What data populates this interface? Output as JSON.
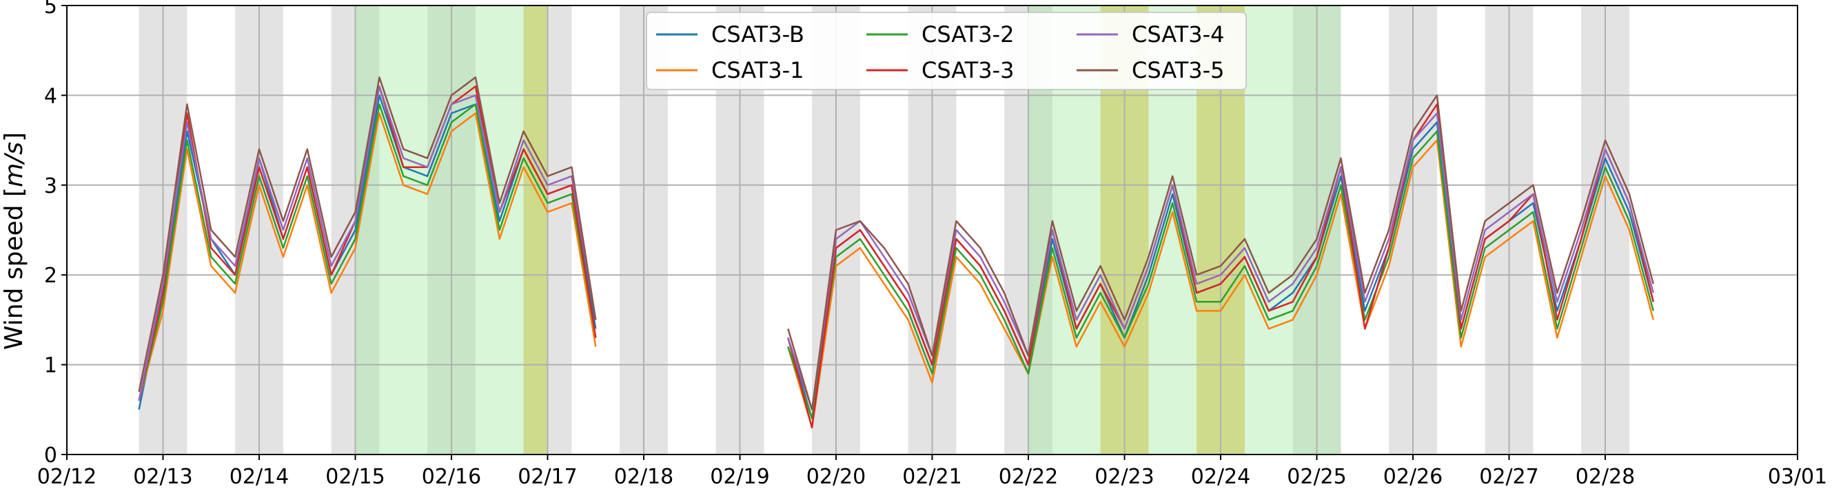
{
  "chart_data": {
    "type": "line",
    "title": "",
    "xlabel": "",
    "ylabel": "Wind speed [m/s]",
    "ylabel_parts": [
      "Wind speed [",
      "m/s",
      "]"
    ],
    "xlim": [
      "2024-02-12",
      "2024-03-01"
    ],
    "ylim": [
      0,
      5
    ],
    "yticks": [
      0,
      1,
      2,
      3,
      4,
      5
    ],
    "xticks": [
      {
        "date": "2024-02-12",
        "label": "02/12"
      },
      {
        "date": "2024-02-13",
        "label": "02/13"
      },
      {
        "date": "2024-02-14",
        "label": "02/14"
      },
      {
        "date": "2024-02-15",
        "label": "02/15"
      },
      {
        "date": "2024-02-16",
        "label": "02/16"
      },
      {
        "date": "2024-02-17",
        "label": "02/17"
      },
      {
        "date": "2024-02-18",
        "label": "02/18"
      },
      {
        "date": "2024-02-19",
        "label": "02/19"
      },
      {
        "date": "2024-02-20",
        "label": "02/20"
      },
      {
        "date": "2024-02-21",
        "label": "02/21"
      },
      {
        "date": "2024-02-22",
        "label": "02/22"
      },
      {
        "date": "2024-02-23",
        "label": "02/23"
      },
      {
        "date": "2024-02-24",
        "label": "02/24"
      },
      {
        "date": "2024-02-25",
        "label": "02/25"
      },
      {
        "date": "2024-02-26",
        "label": "02/26"
      },
      {
        "date": "2024-02-27",
        "label": "02/27"
      },
      {
        "date": "2024-02-28",
        "label": "02/28"
      },
      {
        "date": "2024-03-01",
        "label": "03/01"
      }
    ],
    "grid": true,
    "legend": {
      "placement": "top-center",
      "columns": 3
    },
    "colors": {
      "gray_band": "#c8c8c8",
      "green_band": "#9de89d",
      "yellow_band": "#d4d45a"
    },
    "shaded_spans": [
      {
        "start": "2024-02-12 18:00",
        "end": "2024-02-13 06:00",
        "color": "gray"
      },
      {
        "start": "2024-02-13 18:00",
        "end": "2024-02-14 06:00",
        "color": "gray"
      },
      {
        "start": "2024-02-14 18:00",
        "end": "2024-02-15 06:00",
        "color": "gray"
      },
      {
        "start": "2024-02-15 18:00",
        "end": "2024-02-16 06:00",
        "color": "gray"
      },
      {
        "start": "2024-02-16 18:00",
        "end": "2024-02-17 06:00",
        "color": "gray"
      },
      {
        "start": "2024-02-17 18:00",
        "end": "2024-02-18 06:00",
        "color": "gray"
      },
      {
        "start": "2024-02-18 18:00",
        "end": "2024-02-19 06:00",
        "color": "gray"
      },
      {
        "start": "2024-02-19 18:00",
        "end": "2024-02-20 06:00",
        "color": "gray"
      },
      {
        "start": "2024-02-20 18:00",
        "end": "2024-02-21 06:00",
        "color": "gray"
      },
      {
        "start": "2024-02-21 18:00",
        "end": "2024-02-22 06:00",
        "color": "gray"
      },
      {
        "start": "2024-02-22 18:00",
        "end": "2024-02-23 06:00",
        "color": "gray"
      },
      {
        "start": "2024-02-23 18:00",
        "end": "2024-02-24 06:00",
        "color": "gray"
      },
      {
        "start": "2024-02-24 18:00",
        "end": "2024-02-25 06:00",
        "color": "gray"
      },
      {
        "start": "2024-02-25 18:00",
        "end": "2024-02-26 06:00",
        "color": "gray"
      },
      {
        "start": "2024-02-26 18:00",
        "end": "2024-02-27 06:00",
        "color": "gray"
      },
      {
        "start": "2024-02-27 18:00",
        "end": "2024-02-28 06:00",
        "color": "gray"
      },
      {
        "start": "2024-02-15 00:00",
        "end": "2024-02-17 00:00",
        "color": "green"
      },
      {
        "start": "2024-02-22 00:00",
        "end": "2024-02-25 06:00",
        "color": "green"
      },
      {
        "start": "2024-02-16 18:00",
        "end": "2024-02-17 00:00",
        "color": "yellow"
      },
      {
        "start": "2024-02-22 18:00",
        "end": "2024-02-23 06:00",
        "color": "yellow"
      },
      {
        "start": "2024-02-23 18:00",
        "end": "2024-02-24 06:00",
        "color": "yellow"
      }
    ],
    "x": [
      "2024-02-12 18:00",
      "2024-02-13 00:00",
      "2024-02-13 06:00",
      "2024-02-13 12:00",
      "2024-02-13 18:00",
      "2024-02-14 00:00",
      "2024-02-14 06:00",
      "2024-02-14 12:00",
      "2024-02-14 18:00",
      "2024-02-15 00:00",
      "2024-02-15 06:00",
      "2024-02-15 12:00",
      "2024-02-15 18:00",
      "2024-02-16 00:00",
      "2024-02-16 06:00",
      "2024-02-16 12:00",
      "2024-02-16 18:00",
      "2024-02-17 00:00",
      "2024-02-17 06:00",
      "2024-02-17 12:00",
      "2024-02-19 12:00",
      "2024-02-19 18:00",
      "2024-02-20 00:00",
      "2024-02-20 06:00",
      "2024-02-20 12:00",
      "2024-02-20 18:00",
      "2024-02-21 00:00",
      "2024-02-21 06:00",
      "2024-02-21 12:00",
      "2024-02-21 18:00",
      "2024-02-22 00:00",
      "2024-02-22 06:00",
      "2024-02-22 12:00",
      "2024-02-22 18:00",
      "2024-02-23 00:00",
      "2024-02-23 06:00",
      "2024-02-23 12:00",
      "2024-02-23 18:00",
      "2024-02-24 00:00",
      "2024-02-24 06:00",
      "2024-02-24 12:00",
      "2024-02-24 18:00",
      "2024-02-25 00:00",
      "2024-02-25 06:00",
      "2024-02-25 12:00",
      "2024-02-25 18:00",
      "2024-02-26 00:00",
      "2024-02-26 06:00",
      "2024-02-26 12:00",
      "2024-02-26 18:00",
      "2024-02-27 00:00",
      "2024-02-27 06:00",
      "2024-02-27 12:00",
      "2024-02-27 18:00",
      "2024-02-28 00:00",
      "2024-02-28 06:00",
      "2024-02-28 12:00"
    ],
    "series": [
      {
        "name": "CSAT3-B",
        "color": "#1f77b4",
        "values": [
          0.5,
          1.8,
          3.6,
          2.4,
          2.0,
          3.3,
          2.4,
          3.2,
          2.0,
          2.5,
          4.0,
          3.2,
          3.1,
          3.8,
          3.9,
          2.6,
          3.4,
          2.9,
          3.0,
          1.4,
          1.3,
          0.4,
          2.3,
          2.5,
          2.1,
          1.7,
          1.0,
          2.4,
          2.1,
          1.6,
          1.0,
          2.4,
          1.4,
          1.9,
          1.3,
          2.0,
          2.9,
          1.8,
          1.9,
          2.2,
          1.6,
          1.8,
          2.2,
          3.1,
          1.6,
          2.3,
          3.4,
          3.7,
          1.4,
          2.4,
          2.6,
          2.8,
          1.6,
          2.4,
          3.3,
          2.7,
          1.7
        ]
      },
      {
        "name": "CSAT3-1",
        "color": "#ff7f0e",
        "values": [
          0.6,
          1.6,
          3.4,
          2.1,
          1.8,
          3.0,
          2.2,
          3.0,
          1.8,
          2.3,
          3.8,
          3.0,
          2.9,
          3.6,
          3.8,
          2.4,
          3.2,
          2.7,
          2.8,
          1.2,
          1.2,
          0.3,
          2.1,
          2.3,
          1.9,
          1.5,
          0.8,
          2.2,
          1.9,
          1.4,
          0.9,
          2.2,
          1.2,
          1.7,
          1.2,
          1.8,
          2.7,
          1.6,
          1.6,
          2.0,
          1.4,
          1.5,
          2.0,
          2.9,
          1.4,
          2.1,
          3.2,
          3.5,
          1.2,
          2.2,
          2.4,
          2.6,
          1.3,
          2.2,
          3.1,
          2.5,
          1.5
        ]
      },
      {
        "name": "CSAT3-2",
        "color": "#2ca02c",
        "values": [
          0.6,
          1.7,
          3.5,
          2.2,
          1.9,
          3.1,
          2.3,
          3.1,
          1.9,
          2.4,
          3.9,
          3.1,
          3.0,
          3.7,
          3.9,
          2.5,
          3.3,
          2.8,
          2.9,
          1.3,
          1.2,
          0.4,
          2.2,
          2.4,
          2.0,
          1.6,
          0.9,
          2.3,
          2.0,
          1.5,
          0.9,
          2.3,
          1.3,
          1.8,
          1.3,
          1.9,
          2.8,
          1.7,
          1.7,
          2.1,
          1.5,
          1.6,
          2.1,
          3.0,
          1.5,
          2.2,
          3.3,
          3.6,
          1.3,
          2.3,
          2.5,
          2.7,
          1.4,
          2.3,
          3.2,
          2.6,
          1.6
        ]
      },
      {
        "name": "CSAT3-3",
        "color": "#d62728",
        "values": [
          0.6,
          1.8,
          3.8,
          2.3,
          2.0,
          3.2,
          2.4,
          3.2,
          2.0,
          2.6,
          4.1,
          3.2,
          3.2,
          3.9,
          4.1,
          2.7,
          3.4,
          2.9,
          3.0,
          1.3,
          1.3,
          0.3,
          2.3,
          2.5,
          2.1,
          1.7,
          1.0,
          2.4,
          2.1,
          1.6,
          1.0,
          2.5,
          1.4,
          1.9,
          1.4,
          2.1,
          3.0,
          1.8,
          1.9,
          2.2,
          1.6,
          1.7,
          2.2,
          3.2,
          1.4,
          2.3,
          3.5,
          3.9,
          1.4,
          2.4,
          2.6,
          2.9,
          1.5,
          2.4,
          3.4,
          2.8,
          1.7
        ]
      },
      {
        "name": "CSAT3-4",
        "color": "#9467bd",
        "values": [
          0.6,
          1.9,
          3.7,
          2.4,
          2.1,
          3.3,
          2.5,
          3.3,
          2.1,
          2.6,
          4.1,
          3.3,
          3.2,
          3.9,
          4.0,
          2.7,
          3.5,
          3.0,
          3.1,
          1.5,
          1.3,
          0.5,
          2.4,
          2.6,
          2.2,
          1.8,
          1.1,
          2.5,
          2.2,
          1.7,
          1.1,
          2.5,
          1.5,
          2.0,
          1.4,
          2.1,
          3.0,
          1.9,
          2.0,
          2.3,
          1.7,
          1.9,
          2.3,
          3.2,
          1.7,
          2.4,
          3.5,
          3.8,
          1.5,
          2.5,
          2.7,
          2.9,
          1.7,
          2.5,
          3.4,
          2.8,
          1.8
        ]
      },
      {
        "name": "CSAT3-5",
        "color": "#8c564b",
        "values": [
          0.7,
          2.0,
          3.9,
          2.5,
          2.2,
          3.4,
          2.6,
          3.4,
          2.2,
          2.7,
          4.2,
          3.4,
          3.3,
          4.0,
          4.2,
          2.8,
          3.6,
          3.1,
          3.2,
          1.5,
          1.4,
          0.5,
          2.5,
          2.6,
          2.3,
          1.9,
          1.1,
          2.6,
          2.3,
          1.8,
          1.1,
          2.6,
          1.6,
          2.1,
          1.5,
          2.2,
          3.1,
          2.0,
          2.1,
          2.4,
          1.8,
          2.0,
          2.4,
          3.3,
          1.8,
          2.5,
          3.6,
          4.0,
          1.6,
          2.6,
          2.8,
          3.0,
          1.8,
          2.6,
          3.5,
          2.9,
          1.9
        ]
      }
    ]
  }
}
